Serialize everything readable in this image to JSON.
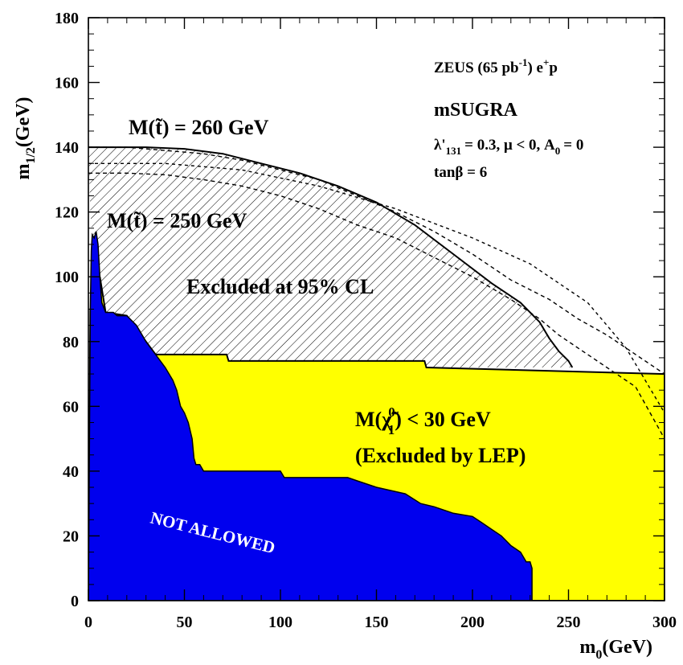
{
  "chart_data": {
    "type": "area",
    "experiment": "ZEUS (65 pb",
    "exp_sup": "-1",
    "exp_tail": ") e",
    "exp_sup2": "+",
    "exp_end": "p",
    "model": "mSUGRA",
    "param_line1": "λ'",
    "param_sub1": "131",
    "param_mid": "= 0.3, μ < 0, A",
    "param_sub2": "0",
    "param_end": "= 0",
    "param_line2": "tanβ = 6",
    "xlabel_main": "m",
    "xlabel_sub": "0",
    "xlabel_unit": "(GeV)",
    "ylabel_main": "m",
    "ylabel_sub": "1/2",
    "ylabel_unit": "(GeV)",
    "xlim": [
      0,
      300
    ],
    "ylim": [
      0,
      180
    ],
    "xticks": [
      0,
      50,
      100,
      150,
      200,
      250,
      300
    ],
    "yticks": [
      0,
      20,
      40,
      60,
      80,
      100,
      120,
      140,
      160,
      180
    ],
    "colors": {
      "not_allowed": "#0000ee",
      "lep": "#ffff00",
      "hatch": "#000000"
    },
    "labels": {
      "stop260": "M(t̃) = 260 GeV",
      "stop250": "M(t̃) = 250 GeV",
      "excluded": "Excluded at 95% CL",
      "chi_line1_pre": "M(",
      "chi_symbol": "χ̃",
      "chi_sup": "0",
      "chi_sub": "1",
      "chi_line1_post": ") < 30 GeV",
      "chi_line2": "(Excluded by LEP)",
      "not_allowed": "NOT ALLOWED"
    },
    "not_allowed_boundary": [
      [
        0,
        0
      ],
      [
        1,
        90
      ],
      [
        1.5,
        108
      ],
      [
        2,
        113
      ],
      [
        3,
        112
      ],
      [
        4,
        114
      ],
      [
        5,
        110
      ],
      [
        6,
        100
      ],
      [
        7,
        92
      ],
      [
        9,
        89
      ],
      [
        13,
        89
      ],
      [
        15,
        88
      ],
      [
        20,
        88
      ],
      [
        25,
        85
      ],
      [
        30,
        80
      ],
      [
        35,
        76
      ],
      [
        40,
        72
      ],
      [
        44,
        68
      ],
      [
        46,
        65
      ],
      [
        48,
        60
      ],
      [
        50,
        58
      ],
      [
        52,
        55
      ],
      [
        54,
        50
      ],
      [
        55,
        44
      ],
      [
        56,
        42
      ],
      [
        58,
        42
      ],
      [
        60,
        40
      ],
      [
        100,
        40
      ],
      [
        102,
        38
      ],
      [
        135,
        38
      ],
      [
        140,
        37
      ],
      [
        150,
        35
      ],
      [
        165,
        33
      ],
      [
        173,
        30
      ],
      [
        180,
        29
      ],
      [
        190,
        27
      ],
      [
        200,
        26
      ],
      [
        205,
        24
      ],
      [
        210,
        22
      ],
      [
        215,
        20
      ],
      [
        220,
        17
      ],
      [
        225,
        15
      ],
      [
        228,
        12
      ],
      [
        230,
        12
      ],
      [
        231,
        10
      ],
      [
        231,
        0
      ]
    ],
    "lep_boundary": [
      [
        0,
        0
      ],
      [
        1,
        90
      ],
      [
        6,
        100
      ],
      [
        9,
        89
      ],
      [
        20,
        88
      ],
      [
        30,
        80
      ],
      [
        35,
        76
      ],
      [
        72,
        76
      ],
      [
        73,
        74
      ],
      [
        175,
        74
      ],
      [
        176,
        72
      ],
      [
        300,
        70
      ],
      [
        300,
        0
      ]
    ],
    "excluded_boundary": [
      [
        0,
        140
      ],
      [
        30,
        140
      ],
      [
        50,
        139.5
      ],
      [
        70,
        138
      ],
      [
        90,
        135
      ],
      [
        110,
        132
      ],
      [
        130,
        128
      ],
      [
        150,
        123
      ],
      [
        170,
        116
      ],
      [
        190,
        107
      ],
      [
        210,
        98
      ],
      [
        225,
        92
      ],
      [
        235,
        86
      ],
      [
        240,
        81
      ],
      [
        245,
        77
      ],
      [
        250,
        74
      ],
      [
        252,
        72
      ]
    ],
    "stop260_contour": [
      [
        0,
        140
      ],
      [
        20,
        140
      ],
      [
        40,
        139
      ],
      [
        60,
        138
      ],
      [
        80,
        136
      ],
      [
        100,
        133
      ],
      [
        120,
        130
      ],
      [
        140,
        125
      ],
      [
        160,
        120
      ],
      [
        180,
        114
      ],
      [
        200,
        107
      ],
      [
        220,
        99
      ],
      [
        240,
        93
      ],
      [
        255,
        87
      ],
      [
        270,
        82
      ],
      [
        285,
        76
      ],
      [
        300,
        70
      ]
    ],
    "stop250_contour": [
      [
        0,
        132
      ],
      [
        20,
        132
      ],
      [
        40,
        131.5
      ],
      [
        60,
        130
      ],
      [
        80,
        128
      ],
      [
        100,
        125
      ],
      [
        120,
        121
      ],
      [
        140,
        116
      ],
      [
        160,
        112
      ],
      [
        180,
        106
      ],
      [
        200,
        100
      ],
      [
        220,
        93
      ],
      [
        235,
        87
      ],
      [
        245,
        82
      ],
      [
        255,
        78
      ],
      [
        270,
        72
      ],
      [
        285,
        66
      ],
      [
        300,
        50
      ]
    ],
    "stop250_inner": [
      [
        0,
        135
      ],
      [
        40,
        135
      ],
      [
        80,
        133
      ],
      [
        120,
        128
      ],
      [
        160,
        121
      ],
      [
        200,
        112
      ],
      [
        230,
        104
      ],
      [
        260,
        92
      ],
      [
        280,
        78
      ],
      [
        290,
        68
      ],
      [
        300,
        58
      ]
    ]
  }
}
